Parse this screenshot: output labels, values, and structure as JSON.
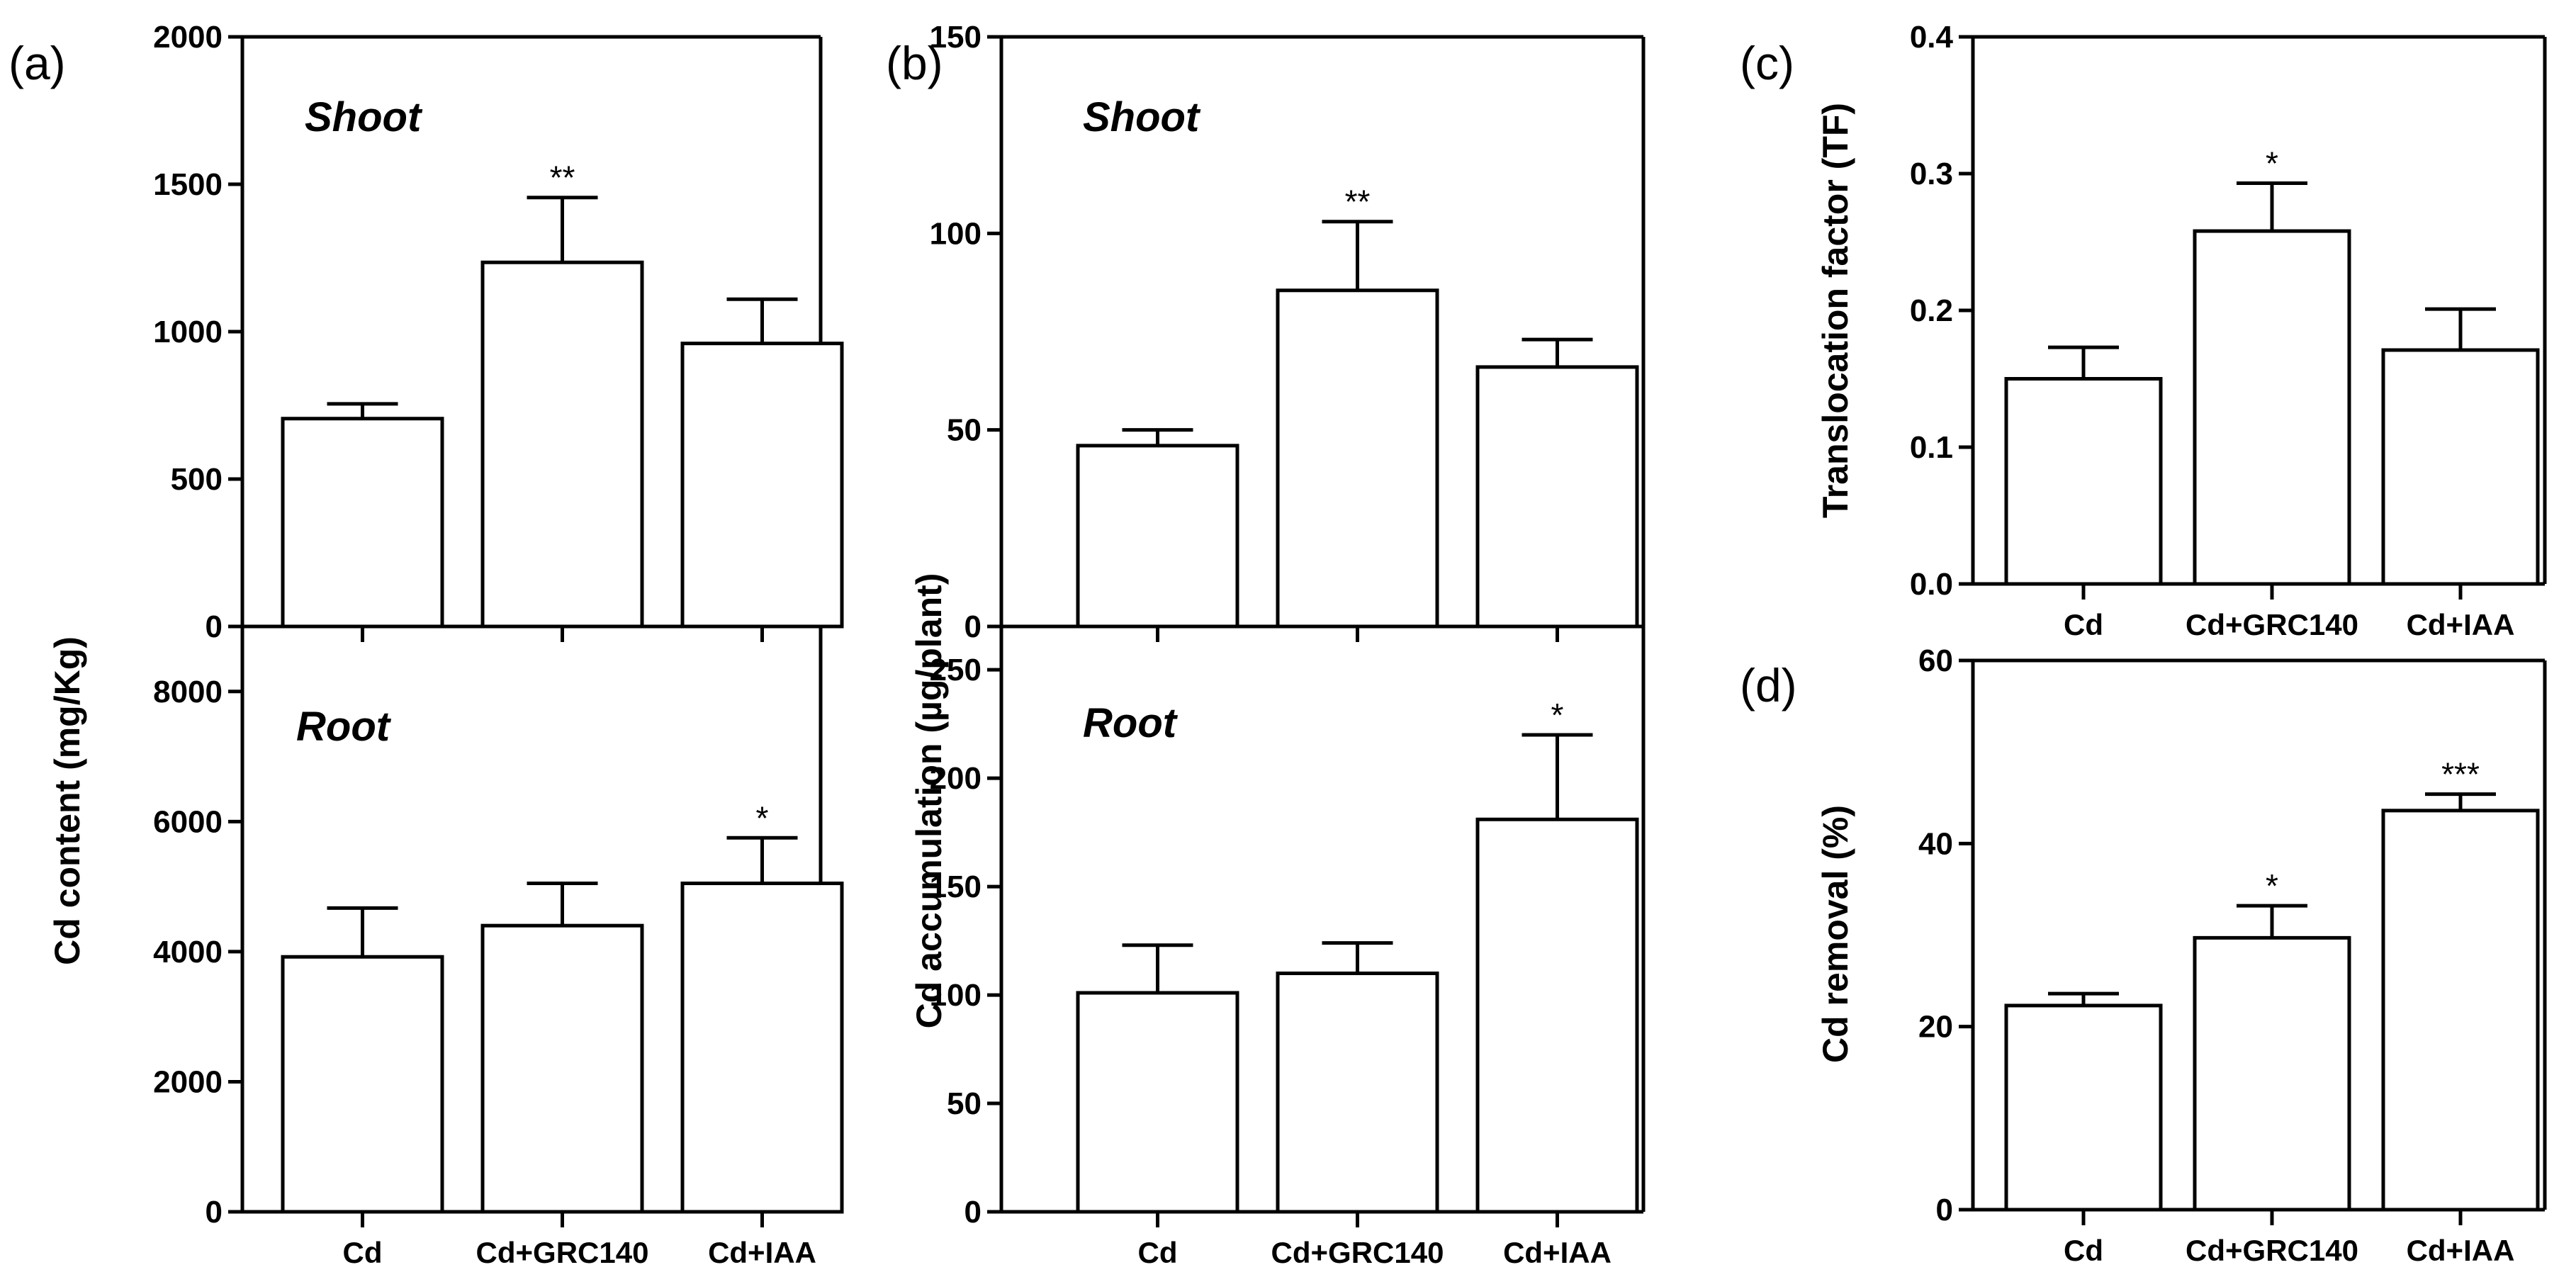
{
  "categories": [
    "Cd",
    "Cd+GRC140",
    "Cd+IAA"
  ],
  "chart_data": [
    {
      "id": "a-shoot",
      "panel_label": "(a)",
      "type": "bar",
      "title": "Shoot",
      "ylabel": "Cd content (mg/Kg)",
      "categories": [
        "Cd",
        "Cd+GRC140",
        "Cd+IAA"
      ],
      "values": [
        705,
        1235,
        960
      ],
      "errors": [
        50,
        220,
        150
      ],
      "significance": [
        "",
        "**",
        ""
      ],
      "ylim": [
        0,
        2000
      ],
      "yticks": [
        "0",
        "500",
        "1000",
        "1500",
        "2000"
      ],
      "yticks_values": [
        0,
        500,
        1000,
        1500,
        2000
      ]
    },
    {
      "id": "a-root",
      "type": "bar",
      "title": "Root",
      "categories": [
        "Cd",
        "Cd+GRC140",
        "Cd+IAA"
      ],
      "values": [
        3920,
        4400,
        5050
      ],
      "errors": [
        750,
        650,
        700
      ],
      "significance": [
        "",
        "",
        "*"
      ],
      "ylim": [
        0,
        9000
      ],
      "yticks": [
        "0",
        "2000",
        "4000",
        "6000",
        "8000"
      ],
      "yticks_values": [
        0,
        2000,
        4000,
        6000,
        8000
      ]
    },
    {
      "id": "b-shoot",
      "panel_label": "(b)",
      "type": "bar",
      "title": "Shoot",
      "ylabel": "Cd accumulation (µg/plant)",
      "categories": [
        "Cd",
        "Cd+GRC140",
        "Cd+IAA"
      ],
      "values": [
        46,
        85.5,
        66
      ],
      "errors": [
        4,
        17.5,
        7
      ],
      "significance": [
        "",
        "**",
        ""
      ],
      "ylim": [
        0,
        150
      ],
      "yticks": [
        "0",
        "50",
        "100",
        "150"
      ],
      "yticks_values": [
        0,
        50,
        100,
        150
      ]
    },
    {
      "id": "b-root",
      "type": "bar",
      "title": "Root",
      "categories": [
        "Cd",
        "Cd+GRC140",
        "Cd+IAA"
      ],
      "values": [
        101,
        110,
        181
      ],
      "errors": [
        22,
        14,
        39
      ],
      "significance": [
        "",
        "",
        "*"
      ],
      "ylim": [
        0,
        270
      ],
      "yticks": [
        "0",
        "50",
        "100",
        "150",
        "200",
        "250"
      ],
      "yticks_values": [
        0,
        50,
        100,
        150,
        200,
        250
      ]
    },
    {
      "id": "c",
      "panel_label": "(c)",
      "type": "bar",
      "ylabel": "Translocation factor (TF)",
      "categories": [
        "Cd",
        "Cd+GRC140",
        "Cd+IAA"
      ],
      "values": [
        0.15,
        0.258,
        0.171
      ],
      "errors": [
        0.023,
        0.035,
        0.03
      ],
      "significance": [
        "",
        "*",
        ""
      ],
      "ylim": [
        0,
        0.4
      ],
      "yticks": [
        "0.0",
        "0.1",
        "0.2",
        "0.3",
        "0.4"
      ],
      "yticks_values": [
        0,
        0.1,
        0.2,
        0.3,
        0.4
      ]
    },
    {
      "id": "d",
      "panel_label": "(d)",
      "type": "bar",
      "ylabel": "Cd removal (%)",
      "categories": [
        "Cd",
        "Cd+GRC140",
        "Cd+IAA"
      ],
      "values": [
        22.3,
        29.7,
        43.6
      ],
      "errors": [
        1.3,
        3.5,
        1.8
      ],
      "significance": [
        "",
        "*",
        "***"
      ],
      "ylim": [
        0,
        60
      ],
      "yticks": [
        "0",
        "20",
        "40",
        "60"
      ],
      "yticks_values": [
        0,
        20,
        40,
        60
      ]
    }
  ]
}
